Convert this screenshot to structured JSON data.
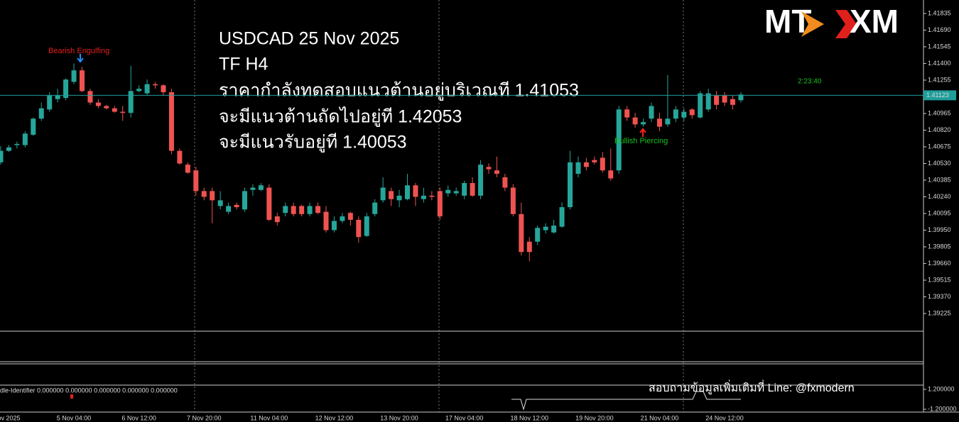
{
  "overlay_text": {
    "title": "USDCAD 25 Nov 2025",
    "timeframe": "TF H4",
    "lines": [
      "ราคากำลังทดสอบแนวต้านอยู่บริเวณที 1.41053",
      "จะมีแนวต้านถัดไปอยู่ที 1.42053",
      "จะมีแนวรับอยู่ที 1.40053"
    ]
  },
  "logo": [
    "MT",
    "XM"
  ],
  "footer_note": "สอบถามข้อมูลเพิ่มเติมที่ Line: @fxmodern",
  "chart_data": {
    "type": "candlestick",
    "categories": [
      null,
      "ov 2025",
      null,
      null,
      null,
      null,
      null,
      null,
      null,
      "5 Nov 04:00",
      null,
      null,
      null,
      null,
      null,
      null,
      null,
      "6 Nov 12:00",
      null,
      null,
      null,
      null,
      null,
      null,
      null,
      "7 Nov 20:00",
      null,
      null,
      null,
      null,
      null,
      null,
      null,
      "11 Nov 04:00",
      null,
      null,
      null,
      null,
      null,
      null,
      null,
      "12 Nov 12:00",
      null,
      null,
      null,
      null,
      null,
      null,
      null,
      "13 Nov 20:00",
      null,
      null,
      null,
      null,
      null,
      null,
      null,
      "17 Nov 04:00",
      null,
      null,
      null,
      null,
      null,
      null,
      null,
      "18 Nov 12:00",
      null,
      null,
      null,
      null,
      null,
      null,
      null,
      "19 Nov 20:00",
      null,
      null,
      null,
      null,
      null,
      null,
      null,
      "21 Nov 04:00",
      null,
      null,
      null,
      null,
      null,
      null,
      null,
      "24 Nov 12:00",
      null,
      null
    ],
    "open": [
      1.4054,
      1.4064,
      1.4069,
      1.4069,
      1.4078,
      1.4092,
      1.41,
      1.4109,
      1.411,
      1.4124,
      1.4134,
      1.4116,
      1.4106,
      1.4103,
      1.4101,
      1.4098,
      1.4097,
      1.4116,
      1.4114,
      1.4122,
      1.4121,
      1.4115,
      1.4064,
      1.4052,
      1.4047,
      1.4029,
      1.4029,
      1.4016,
      1.4011,
      1.4017,
      1.4013,
      1.403,
      1.403,
      1.4032,
      1.4007,
      1.401,
      1.4016,
      1.4016,
      1.4009,
      1.4016,
      1.4011,
      1.3995,
      1.4003,
      1.401,
      1.4004,
      1.399,
      1.4009,
      1.4021,
      1.4029,
      1.4021,
      1.4022,
      1.4034,
      1.4022,
      1.4025,
      1.4029,
      1.4027,
      1.4027,
      1.4025,
      1.4036,
      1.4025,
      1.405,
      1.4047,
      1.4041,
      1.4032,
      1.4009,
      1.3985,
      1.3985,
      1.3995,
      1.3993,
      1.3998,
      1.4015,
      1.4044,
      1.4054,
      1.4056,
      1.4058,
      1.4047,
      1.4047,
      1.41,
      1.4093,
      1.4087,
      1.4092,
      1.4092,
      1.4087,
      1.4092,
      1.4093,
      1.41,
      1.4093,
      1.41,
      1.4112,
      1.4112,
      1.4109,
      1.4108
    ],
    "high": [
      1.4068,
      1.4069,
      1.4072,
      1.4081,
      1.4093,
      1.4106,
      1.4115,
      1.4118,
      1.4127,
      1.414,
      1.4137,
      1.4118,
      1.4109,
      1.4104,
      1.4103,
      1.4103,
      1.4138,
      1.4121,
      1.4126,
      1.4124,
      1.4122,
      1.4118,
      1.4066,
      1.4054,
      1.405,
      1.4032,
      1.4032,
      1.4029,
      1.4019,
      1.4019,
      1.4032,
      1.4035,
      1.4036,
      1.4035,
      1.401,
      1.4019,
      1.4019,
      1.4017,
      1.4019,
      1.4019,
      1.4016,
      1.4007,
      1.401,
      1.4011,
      1.4007,
      1.401,
      1.4022,
      1.4041,
      1.4032,
      1.403,
      1.4044,
      1.4036,
      1.4032,
      1.4029,
      1.4032,
      1.4034,
      1.4032,
      1.4038,
      1.4041,
      1.4056,
      1.4053,
      1.4059,
      1.4044,
      1.4035,
      1.4019,
      1.3989,
      1.3999,
      1.4001,
      1.4004,
      1.4019,
      1.4064,
      1.4059,
      1.4058,
      1.4059,
      1.4063,
      1.4066,
      1.4103,
      1.4103,
      1.4097,
      1.4092,
      1.4106,
      1.4097,
      1.413,
      1.4103,
      1.4101,
      1.4101,
      1.4116,
      1.4118,
      1.4116,
      1.4115,
      1.4112,
      1.4115
    ],
    "low": [
      1.4052,
      1.4063,
      1.4066,
      1.4067,
      1.4077,
      1.409,
      1.4098,
      1.4106,
      1.4108,
      1.4122,
      1.4115,
      1.4104,
      1.4101,
      1.41,
      1.4097,
      1.409,
      1.4093,
      1.4115,
      1.4112,
      1.4118,
      1.4112,
      1.4061,
      1.4052,
      1.4044,
      1.4025,
      1.4021,
      1.4001,
      1.4013,
      1.4009,
      1.4013,
      1.4011,
      1.4025,
      1.4029,
      1.4003,
      1.3999,
      1.4007,
      1.4007,
      1.4007,
      1.4007,
      1.4009,
      1.3993,
      1.3993,
      1.4001,
      1.3999,
      1.3984,
      1.3989,
      1.4007,
      1.4019,
      1.4016,
      1.4015,
      1.4021,
      1.4016,
      1.4019,
      1.4021,
      1.4004,
      1.4024,
      1.4025,
      1.4022,
      1.4024,
      1.4022,
      1.4044,
      1.4041,
      1.4029,
      1.4007,
      1.3973,
      1.3968,
      1.3982,
      1.3992,
      1.3992,
      1.3997,
      1.4013,
      1.4041,
      1.4047,
      1.4052,
      1.4045,
      1.4038,
      1.4044,
      1.409,
      1.4084,
      1.4085,
      1.4089,
      1.4081,
      1.4085,
      1.4089,
      1.409,
      1.4092,
      1.4092,
      1.4098,
      1.41,
      1.4103,
      1.41,
      1.4106
    ],
    "close": [
      1.4064,
      1.4067,
      1.407,
      1.4079,
      1.4092,
      1.4101,
      1.4112,
      1.4112,
      1.4126,
      1.4134,
      1.4116,
      1.4106,
      1.4103,
      1.4101,
      1.4098,
      1.4097,
      1.4116,
      1.4118,
      1.4122,
      1.4121,
      1.4115,
      1.4064,
      1.4053,
      1.4045,
      1.4029,
      1.4024,
      1.4021,
      1.4021,
      1.4016,
      1.4015,
      1.4029,
      1.4032,
      1.4034,
      1.4004,
      1.4002,
      1.4016,
      1.4009,
      1.4009,
      1.4016,
      1.401,
      1.3995,
      1.4003,
      1.4007,
      1.4004,
      1.3989,
      1.4007,
      1.4019,
      1.4032,
      1.4022,
      1.4025,
      1.4034,
      1.4024,
      1.4025,
      1.4024,
      1.4007,
      1.403,
      1.4029,
      1.4036,
      1.4025,
      1.4052,
      1.4048,
      1.4044,
      1.4032,
      1.4009,
      1.3976,
      1.3976,
      1.3997,
      1.3998,
      1.3999,
      1.4015,
      1.4054,
      1.4054,
      1.405,
      1.4054,
      1.4047,
      1.404,
      1.41,
      1.4093,
      1.4087,
      1.4089,
      1.4103,
      1.4085,
      1.4092,
      1.41,
      1.4098,
      1.4095,
      1.4114,
      1.4114,
      1.4104,
      1.4106,
      1.4104,
      1.4113
    ],
    "up_color": "#26a69a",
    "down_color": "#ef5350",
    "ylim": [
      1.39071,
      1.41952
    ],
    "yticks": [
      1.41835,
      {
        "value": 1.4169,
        "label": "1.41690"
      },
      1.41545,
      {
        "value": 1.414,
        "label": "1.41400"
      },
      1.41255,
      1.40965,
      {
        "value": 1.4082,
        "label": "1.40820"
      },
      1.40675,
      {
        "value": 1.4053,
        "label": "1.40530"
      },
      1.40385,
      {
        "value": 1.4024,
        "label": "1.40240"
      },
      1.40095,
      {
        "value": 1.3995,
        "label": "1.39950"
      },
      1.39805,
      {
        "value": 1.3966,
        "label": "1.39660"
      },
      1.39515,
      {
        "value": 1.3937,
        "label": "1.39370"
      },
      1.39225
    ],
    "current_price": 1.41123,
    "countdown": "2:23:40",
    "annotations": [
      {
        "text": "Bearish Engulfing",
        "color": "#e0201c"
      },
      {
        "text": "Bullish Piercing",
        "color": "#19c21f"
      }
    ],
    "indicator": {
      "label": "dle-Identifier 0.000000 0.000000 0.000000 0.000000 0.000000",
      "ylim": [
        -1.54,
        1.71
      ],
      "yticks": [
        {
          "value": 1.2,
          "label": "1.200000"
        },
        {
          "value": -1.2,
          "label": "-1.200000"
        }
      ]
    }
  }
}
